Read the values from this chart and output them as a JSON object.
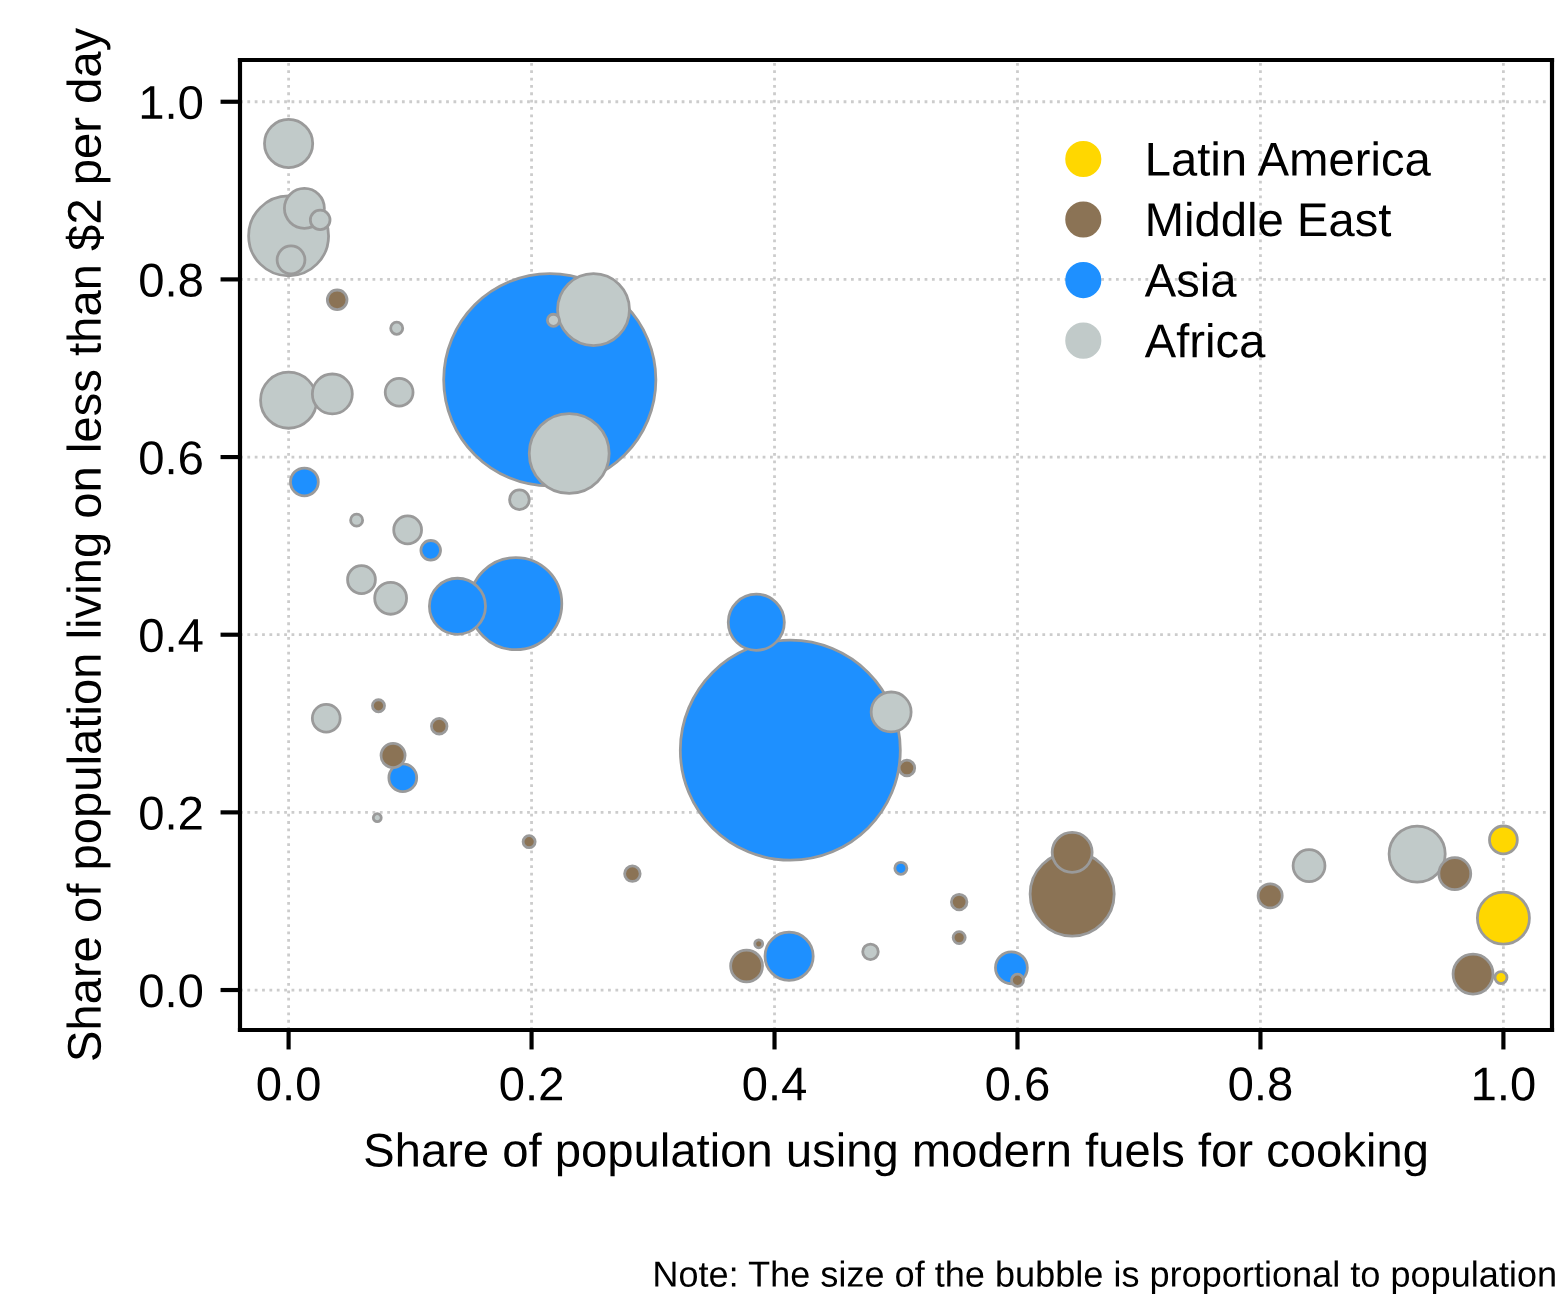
{
  "chart_data": {
    "type": "bubble",
    "xlabel": "Share of population using modern fuels for cooking",
    "ylabel": "Share of population living on less than $2 per day",
    "annotations": [
      "Note: The size of the bubble is proportional to population"
    ],
    "xlim": [
      -0.04,
      1.04
    ],
    "ylim": [
      -0.045,
      1.047
    ],
    "xticks": [
      {
        "value": 0,
        "label": "0.0"
      },
      {
        "value": 0.2,
        "label": "0.2"
      },
      {
        "value": 0.4,
        "label": "0.4"
      },
      {
        "value": 0.6,
        "label": "0.6"
      },
      {
        "value": 0.8,
        "label": "0.8"
      },
      {
        "value": 1,
        "label": "1.0"
      }
    ],
    "yticks": [
      {
        "value": 0,
        "label": "0.0"
      },
      {
        "value": 0.2,
        "label": "0.2"
      },
      {
        "value": 0.4,
        "label": "0.4"
      },
      {
        "value": 0.6,
        "label": "0.6"
      },
      {
        "value": 0.8,
        "label": "0.8"
      },
      {
        "value": 1,
        "label": "1.0"
      }
    ],
    "grid": true,
    "legend": "top right",
    "marker": "circle",
    "series": [
      {
        "name": "Latin America",
        "color": "#ffd700",
        "x": [
          1.0,
          1.0,
          0.998
        ],
        "values": [
          0.169,
          0.081,
          0.014
        ],
        "sizes": [
          0.016,
          0.056,
          0.003
        ]
      },
      {
        "name": "Middle East",
        "color": "#8b7355",
        "x": [
          0.04,
          0.074,
          0.124,
          0.086,
          0.198,
          0.283,
          0.377,
          0.387,
          0.509,
          0.552,
          0.552,
          0.6,
          0.645,
          0.645,
          0.808,
          0.96,
          0.975
        ],
        "values": [
          0.777,
          0.32,
          0.297,
          0.264,
          0.167,
          0.131,
          0.027,
          0.052,
          0.25,
          0.099,
          0.059,
          0.011,
          0.108,
          0.155,
          0.106,
          0.131,
          0.018
        ],
        "sizes": [
          0.008,
          0.003,
          0.005,
          0.012,
          0.003,
          0.005,
          0.021,
          0.0013,
          0.005,
          0.005,
          0.003,
          0.003,
          0.146,
          0.033,
          0.012,
          0.021,
          0.033
        ]
      },
      {
        "name": "Asia",
        "color": "#1e90ff",
        "x": [
          0.215,
          0.413,
          0.013,
          0.117,
          0.139,
          0.187,
          0.385,
          0.094,
          0.412,
          0.504,
          0.595
        ],
        "values": [
          0.687,
          0.27,
          0.572,
          0.495,
          0.432,
          0.435,
          0.414,
          0.239,
          0.038,
          0.137,
          0.025
        ],
        "sizes": [
          0.93,
          1,
          0.016,
          0.008,
          0.065,
          0.175,
          0.065,
          0.016,
          0.048,
          0.003,
          0.021
        ]
      },
      {
        "name": "Africa",
        "color": "#c1cac9",
        "x": [
          0.0,
          0.0,
          0.013,
          0.026,
          0.002,
          0.0,
          0.036,
          0.091,
          0.089,
          0.218,
          0.251,
          0.231,
          0.19,
          0.056,
          0.098,
          0.06,
          0.084,
          0.031,
          0.496,
          0.479,
          0.84,
          0.929,
          0.073
        ],
        "values": [
          0.953,
          0.849,
          0.88,
          0.867,
          0.822,
          0.664,
          0.671,
          0.673,
          0.745,
          0.754,
          0.766,
          0.604,
          0.552,
          0.529,
          0.518,
          0.462,
          0.441,
          0.306,
          0.313,
          0.043,
          0.14,
          0.153,
          0.194
        ],
        "sizes": [
          0.048,
          0.132,
          0.033,
          0.008,
          0.016,
          0.065,
          0.033,
          0.016,
          0.003,
          0.003,
          0.107,
          0.132,
          0.008,
          0.003,
          0.016,
          0.016,
          0.021,
          0.016,
          0.033,
          0.005,
          0.021,
          0.065,
          0.0013
        ]
      }
    ]
  }
}
